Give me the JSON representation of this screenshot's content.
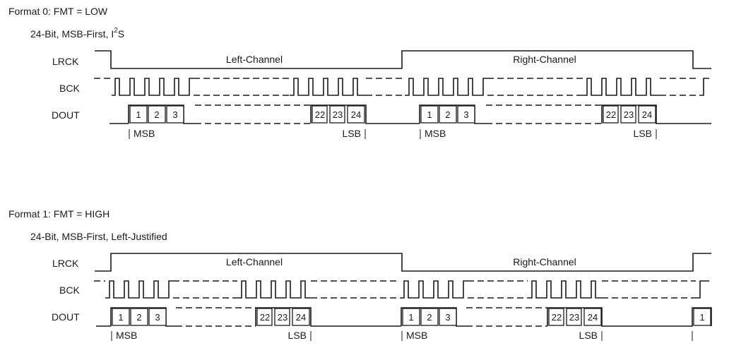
{
  "formats": [
    {
      "title": "Format 0: FMT = LOW",
      "subtitle_main": "24-Bit, MSB-First, I",
      "subtitle_sup": "2",
      "subtitle_tail": "S",
      "signals": {
        "lrck": "LRCK",
        "bck": "BCK",
        "dout": "DOUT"
      },
      "channels": {
        "left": "Left-Channel",
        "right": "Right-Channel"
      },
      "bits": {
        "first": [
          "1",
          "2",
          "3"
        ],
        "last": [
          "22",
          "23",
          "24"
        ],
        "next": ""
      },
      "markers": {
        "msb": "MSB",
        "lsb": "LSB"
      }
    },
    {
      "title": "Format 1: FMT = HIGH",
      "subtitle_main": "24-Bit, MSB-First, Left-Justified",
      "subtitle_sup": "",
      "subtitle_tail": "",
      "signals": {
        "lrck": "LRCK",
        "bck": "BCK",
        "dout": "DOUT"
      },
      "channels": {
        "left": "Left-Channel",
        "right": "Right-Channel"
      },
      "bits": {
        "first": [
          "1",
          "2",
          "3"
        ],
        "last": [
          "22",
          "23",
          "24"
        ],
        "next": "1"
      },
      "markers": {
        "msb": "MSB",
        "lsb": "LSB"
      }
    }
  ]
}
